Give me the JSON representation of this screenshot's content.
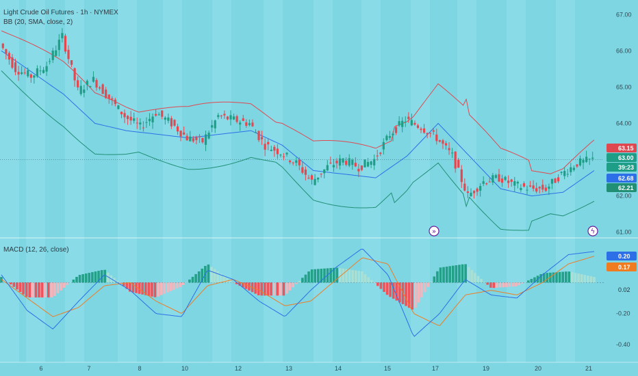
{
  "header": {
    "title": "Light Crude Oil Futures · 1h · NYMEX",
    "bb_label": "BB (20, SMA, close, 2)",
    "macd_label": "MACD (12, 26, close)"
  },
  "colors": {
    "background": "#7fd6e3",
    "band_stripe": "#8ddde9",
    "up": "#1e9e86",
    "down": "#e5474f",
    "bb_upper": "#e0484f",
    "bb_basis": "#2c6fe6",
    "bb_lower": "#208f74",
    "macd": "#2c6fe6",
    "signal": "#f07c22",
    "hist_pos_strong": "#23a088",
    "hist_pos_weak": "#a9e0d6",
    "hist_neg_strong": "#f0525a",
    "hist_neg_weak": "#f3b6bd"
  },
  "price_axis": {
    "ticks": [
      "67.00",
      "66.00",
      "65.00",
      "64.00",
      "62.00",
      "61.00"
    ],
    "range": [
      60.9,
      67.25
    ]
  },
  "macd_axis": {
    "ticks": [
      "-0.20",
      "-0.40"
    ],
    "range": [
      -0.47,
      0.27
    ]
  },
  "x_axis": {
    "ticks": [
      "6",
      "7",
      "8",
      "10",
      "12",
      "13",
      "14",
      "15",
      "17",
      "19",
      "20",
      "21"
    ]
  },
  "badges": {
    "bb_upper": "63.15",
    "last_price": "63.00",
    "countdown": "39:23",
    "bb_basis": "62.68",
    "bb_lower": "62.21",
    "macd": "0.20",
    "signal": "0.17",
    "hist": "0.02"
  },
  "events": {
    "split_icon": "fast-forward-icon",
    "dividend_icon": "lightning-icon"
  },
  "chart_data": [
    {
      "type": "line",
      "title": "Light Crude Oil Futures · 1h · NYMEX",
      "series": [
        {
          "name": "BB (20, SMA, close, 2)",
          "x": [
            0,
            10,
            20,
            30,
            40,
            50,
            60,
            70,
            80,
            90,
            100,
            110,
            120,
            130,
            140,
            150,
            160,
            170,
            180,
            190
          ],
          "values": [
            66.0,
            65.4,
            64.8,
            64.0,
            63.8,
            63.7,
            63.6,
            63.7,
            63.8,
            63.4,
            62.7,
            62.6,
            62.5,
            63.1,
            64.0,
            63.1,
            62.2,
            62.0,
            62.1,
            62.7
          ]
        }
      ],
      "price_samples": {
        "x": [
          0,
          5,
          10,
          15,
          20,
          25,
          30,
          35,
          40,
          45,
          50,
          55,
          60,
          65,
          70,
          75,
          80,
          85,
          90,
          95,
          100,
          105,
          110,
          115,
          120,
          125,
          130,
          135,
          140,
          145,
          150,
          155,
          160,
          165,
          170,
          175,
          180,
          185,
          190
        ],
        "close": [
          66.2,
          65.5,
          65.3,
          65.6,
          66.4,
          64.9,
          65.2,
          64.7,
          64.2,
          63.9,
          64.3,
          64.0,
          63.6,
          63.5,
          64.2,
          64.1,
          64.0,
          63.4,
          63.2,
          62.9,
          62.4,
          62.8,
          63.0,
          62.8,
          63.0,
          63.7,
          64.1,
          63.9,
          63.6,
          63.1,
          62.0,
          62.4,
          62.5,
          62.3,
          62.2,
          62.2,
          62.6,
          62.9,
          63.0
        ],
        "open": [
          66.4,
          65.8,
          65.2,
          65.4,
          66.0,
          65.6,
          65.0,
          64.9,
          64.5,
          64.1,
          64.0,
          64.2,
          63.8,
          63.6,
          63.8,
          64.3,
          64.1,
          63.7,
          63.3,
          63.1,
          62.9,
          62.5,
          62.9,
          62.9,
          62.9,
          63.3,
          63.8,
          64.1,
          63.8,
          63.5,
          62.5,
          62.2,
          62.5,
          62.5,
          62.3,
          62.1,
          62.3,
          62.7,
          62.9
        ]
      }
    },
    {
      "type": "bar",
      "title": "MACD (12, 26, close)",
      "series": [
        {
          "name": "MACD",
          "values": [
            0.05,
            -0.18,
            -0.3,
            -0.12,
            0.05,
            -0.05,
            -0.2,
            -0.22,
            0.08,
            0.02,
            -0.12,
            -0.22,
            -0.05,
            0.1,
            0.22,
            0.05,
            -0.35,
            -0.2,
            0.02,
            -0.08,
            -0.1,
            0.05,
            0.18,
            0.2
          ]
        },
        {
          "name": "Signal",
          "values": [
            0.02,
            -0.1,
            -0.22,
            -0.16,
            -0.02,
            0.0,
            -0.12,
            -0.2,
            -0.02,
            0.02,
            -0.05,
            -0.15,
            -0.12,
            0.02,
            0.16,
            0.12,
            -0.2,
            -0.28,
            -0.08,
            -0.05,
            -0.08,
            0.0,
            0.12,
            0.17
          ]
        }
      ]
    }
  ]
}
